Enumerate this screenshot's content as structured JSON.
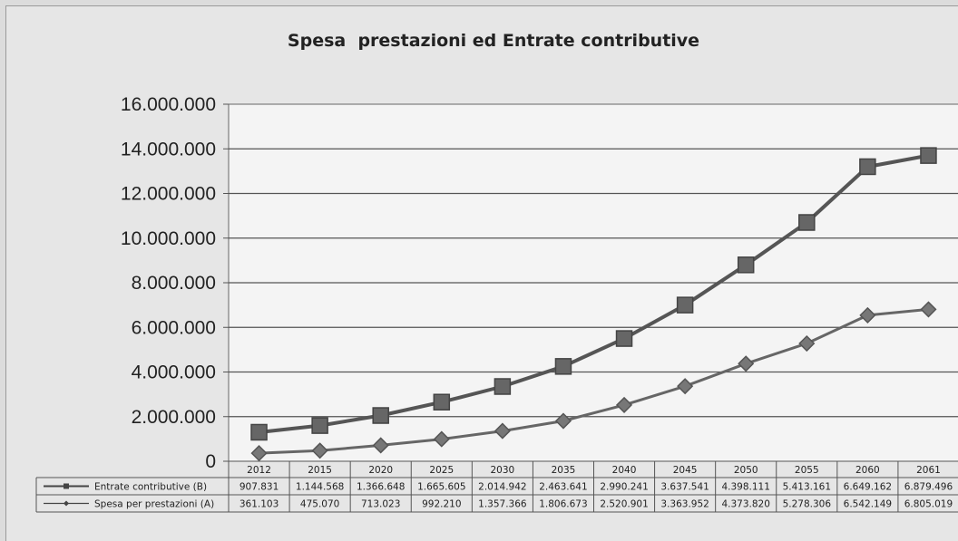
{
  "chart_data": {
    "type": "line",
    "title": "Spesa  prestazioni ed Entrate contributive",
    "xlabel": "",
    "ylabel": "",
    "categories": [
      "2012",
      "2015",
      "2020",
      "2025",
      "2030",
      "2035",
      "2040",
      "2045",
      "2050",
      "2055",
      "2060",
      "2061"
    ],
    "ylim": [
      0,
      16000000
    ],
    "yticks": [
      "0",
      "2.000.000",
      "4.000.000",
      "6.000.000",
      "8.000.000",
      "10.000.000",
      "12.000.000",
      "14.000.000",
      "16.000.000"
    ],
    "grid": true,
    "data_table": true,
    "series": [
      {
        "name": "Entrate contributive (B)",
        "marker": "square",
        "color": "#555555",
        "values": [
          1300000,
          1600000,
          2050000,
          2650000,
          3350000,
          4250000,
          5500000,
          7000000,
          8800000,
          10700000,
          13200000,
          13700000
        ],
        "table_values": [
          "907.831",
          "1.144.568",
          "1.366.648",
          "1.665.605",
          "2.014.942",
          "2.463.641",
          "2.990.241",
          "3.637.541",
          "4.398.111",
          "5.413.161",
          "6.649.162",
          "6.879.496"
        ]
      },
      {
        "name": "Spesa per prestazioni (A)",
        "marker": "diamond",
        "color": "#666666",
        "values": [
          361103,
          475070,
          713023,
          992210,
          1357366,
          1806673,
          2520901,
          3363952,
          4373820,
          5278306,
          6542149,
          6805019
        ],
        "table_values": [
          "361.103",
          "475.070",
          "713.023",
          "992.210",
          "1.357.366",
          "1.806.673",
          "2.520.901",
          "3.363.952",
          "4.373.820",
          "5.278.306",
          "6.542.149",
          "6.805.019"
        ]
      }
    ]
  }
}
